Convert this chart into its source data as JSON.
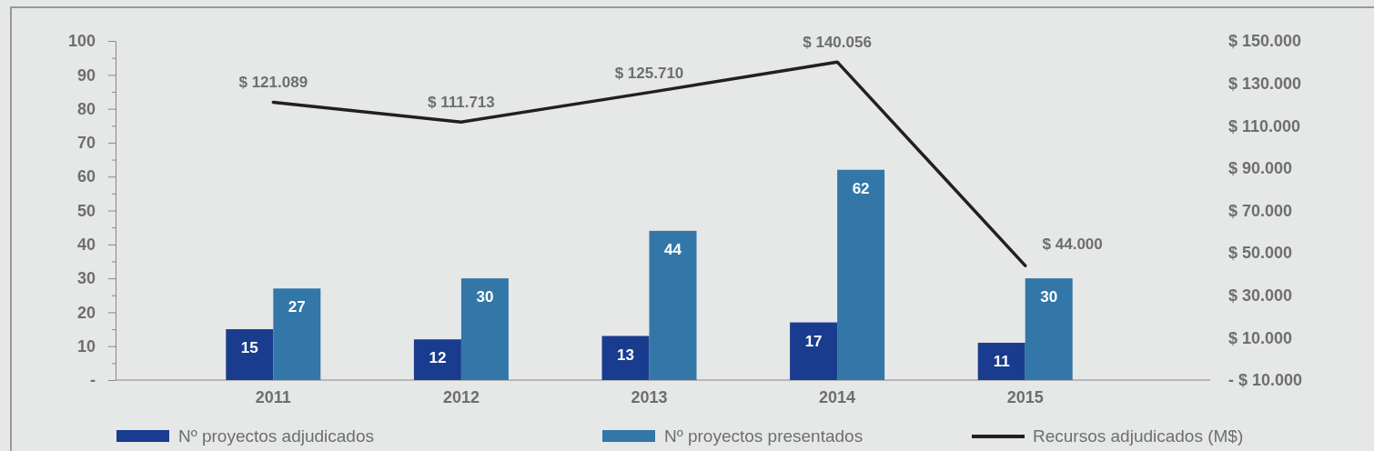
{
  "chart_data": {
    "type": "bar",
    "categories": [
      "2011",
      "2012",
      "2013",
      "2014",
      "2015"
    ],
    "series": [
      {
        "name": "Nº proyectos adjudicados",
        "color": "#1a3c8e",
        "values": [
          15,
          12,
          13,
          17,
          11
        ],
        "value_labels": [
          "15",
          "12",
          "13",
          "17",
          "11"
        ]
      },
      {
        "name": "Nº proyectos presentados",
        "color": "#3277a8",
        "values": [
          27,
          30,
          44,
          62,
          30
        ],
        "value_labels": [
          "27",
          "30",
          "44",
          "62",
          "30"
        ]
      },
      {
        "name": "Recursos adjudicados (M$)",
        "type": "line",
        "axis": "y2",
        "color": "#231f20",
        "values": [
          121089,
          111713,
          125710,
          140056,
          44000
        ],
        "value_labels": [
          "$ 121.089",
          "$ 111.713",
          "$ 125.710",
          "$ 140.056",
          "$ 44.000"
        ]
      }
    ],
    "ylim": [
      0,
      100
    ],
    "yticks": [
      {
        "value": 0,
        "label": "-"
      },
      {
        "value": 5,
        "label": null
      },
      10,
      {
        "value": 15,
        "label": null
      },
      20,
      {
        "value": 25,
        "label": null
      },
      30,
      {
        "value": 35,
        "label": null
      },
      40,
      {
        "value": 45,
        "label": null
      },
      50,
      {
        "value": 55,
        "label": null
      },
      60,
      {
        "value": 65,
        "label": null
      },
      70,
      {
        "value": 75,
        "label": null
      },
      80,
      {
        "value": 85,
        "label": null
      },
      90,
      {
        "value": 95,
        "label": null
      },
      100
    ],
    "y2lim": [
      -10000,
      150000
    ],
    "y2ticks": [
      {
        "value": -10000,
        "label": "- $ 10.000"
      },
      {
        "value": 10000,
        "label": "$ 10.000"
      },
      {
        "value": 30000,
        "label": "$ 30.000"
      },
      {
        "value": 50000,
        "label": "$ 50.000"
      },
      {
        "value": 70000,
        "label": "$ 70.000"
      },
      {
        "value": 90000,
        "label": "$ 90.000"
      },
      {
        "value": 110000,
        "label": "$ 110.000"
      },
      {
        "value": 130000,
        "label": "$ 130.000"
      },
      {
        "value": 150000,
        "label": "$ 150.000"
      }
    ],
    "legend": "bottom",
    "grid": false
  }
}
